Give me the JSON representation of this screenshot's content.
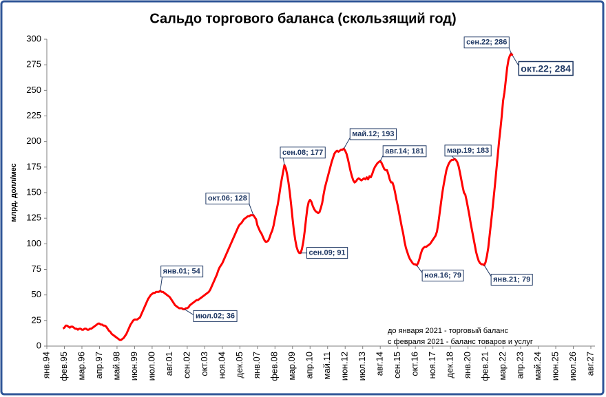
{
  "chart_data": {
    "type": "line",
    "title": "Сальдо торгового баланса (скользящий год)",
    "y_label": "млрд. долл/мес",
    "notes": [
      "до января 2021 - торговый баланс",
      "с февраля 2021 - баланс товаров и услуг"
    ],
    "color": "#ff0000",
    "grid": false,
    "ylim": [
      0,
      300
    ],
    "yticks": [
      0,
      25,
      50,
      75,
      100,
      125,
      150,
      175,
      200,
      225,
      250,
      275,
      300
    ],
    "categories": [
      "янв.94",
      null,
      null,
      null,
      null,
      null,
      null,
      null,
      null,
      null,
      null,
      null,
      null,
      "фев.95",
      null,
      null,
      null,
      null,
      null,
      null,
      null,
      null,
      null,
      null,
      null,
      null,
      "мар.96",
      null,
      null,
      null,
      null,
      null,
      null,
      null,
      null,
      null,
      null,
      null,
      null,
      "апр.97",
      null,
      null,
      null,
      null,
      null,
      null,
      null,
      null,
      null,
      null,
      null,
      null,
      "май.98",
      null,
      null,
      null,
      null,
      null,
      null,
      null,
      null,
      null,
      null,
      null,
      null,
      "июн.99",
      null,
      null,
      null,
      null,
      null,
      null,
      null,
      null,
      null,
      null,
      null,
      null,
      "июл.00",
      null,
      null,
      null,
      null,
      null,
      null,
      null,
      null,
      null,
      null,
      null,
      null,
      "авг.01",
      null,
      null,
      null,
      null,
      null,
      null,
      null,
      null,
      null,
      null,
      null,
      null,
      "сен.02",
      null,
      null,
      null,
      null,
      null,
      null,
      null,
      null,
      null,
      null,
      null,
      null,
      "окт.03",
      null,
      null,
      null,
      null,
      null,
      null,
      null,
      null,
      null,
      null,
      null,
      null,
      "ноя.04",
      null,
      null,
      null,
      null,
      null,
      null,
      null,
      null,
      null,
      null,
      null,
      null,
      "дек.05",
      null,
      null,
      null,
      null,
      null,
      null,
      null,
      null,
      null,
      null,
      null,
      null,
      "янв.07",
      null,
      null,
      null,
      null,
      null,
      null,
      null,
      null,
      null,
      null,
      null,
      null,
      "фев.08",
      null,
      null,
      null,
      null,
      null,
      null,
      null,
      null,
      null,
      null,
      null,
      null,
      "мар.09",
      null,
      null,
      null,
      null,
      null,
      null,
      null,
      null,
      null,
      null,
      null,
      null,
      "апр.10",
      null,
      null,
      null,
      null,
      null,
      null,
      null,
      null,
      null,
      null,
      null,
      null,
      "май.11",
      null,
      null,
      null,
      null,
      null,
      null,
      null,
      null,
      null,
      null,
      null,
      null,
      "июн.12",
      null,
      null,
      null,
      null,
      null,
      null,
      null,
      null,
      null,
      null,
      null,
      null,
      "июл.13",
      null,
      null,
      null,
      null,
      null,
      null,
      null,
      null,
      null,
      null,
      null,
      null,
      "авг.14",
      null,
      null,
      null,
      null,
      null,
      null,
      null,
      null,
      null,
      null,
      null,
      null,
      "сен.15",
      null,
      null,
      null,
      null,
      null,
      null,
      null,
      null,
      null,
      null,
      null,
      null,
      "окт.16",
      null,
      null,
      null,
      null,
      null,
      null,
      null,
      null,
      null,
      null,
      null,
      null,
      "ноя.17",
      null,
      null,
      null,
      null,
      null,
      null,
      null,
      null,
      null,
      null,
      null,
      null,
      "дек.18",
      null,
      null,
      null,
      null,
      null,
      null,
      null,
      null,
      null,
      null,
      null,
      null,
      "янв.20",
      null,
      null,
      null,
      null,
      null,
      null,
      null,
      null,
      null,
      null,
      null,
      null,
      "фев.21",
      null,
      null,
      null,
      null,
      null,
      null,
      null,
      null,
      null,
      null,
      null,
      null,
      "мар.22",
      null,
      null,
      null,
      null,
      null,
      null,
      null,
      null,
      null,
      null,
      null,
      null,
      "апр.23",
      null,
      null,
      null,
      null,
      null,
      null,
      null,
      null,
      null,
      null,
      null,
      null,
      "май.24",
      null,
      null,
      null,
      null,
      null,
      null,
      null,
      null,
      null,
      null,
      null,
      null,
      "июн.25",
      null,
      null,
      null,
      null,
      null,
      null,
      null,
      null,
      null,
      null,
      null,
      null,
      "июл.26",
      null,
      null,
      null,
      null,
      null,
      null,
      null,
      null,
      null,
      null,
      null,
      null,
      "авг.27"
    ],
    "values": [
      null,
      null,
      null,
      null,
      null,
      null,
      null,
      null,
      null,
      null,
      null,
      null,
      17,
      18,
      20,
      20,
      19,
      18,
      19,
      19,
      18,
      17,
      17,
      16,
      17,
      17,
      16,
      16,
      17,
      17,
      16,
      16,
      17,
      17,
      18,
      19,
      20,
      21,
      22,
      22,
      21,
      21,
      20,
      20,
      19,
      17,
      15,
      14,
      12,
      11,
      10,
      9,
      8,
      7,
      6,
      6,
      7,
      8,
      10,
      12,
      15,
      18,
      21,
      23,
      25,
      26,
      26,
      26,
      27,
      28,
      31,
      34,
      37,
      40,
      43,
      46,
      48,
      50,
      51,
      52,
      52,
      53,
      53,
      53,
      54,
      53,
      53,
      52,
      51,
      50,
      49,
      48,
      46,
      44,
      42,
      40,
      39,
      38,
      37,
      37,
      37,
      36,
      36,
      37,
      37,
      38,
      40,
      41,
      42,
      43,
      44,
      45,
      45,
      46,
      47,
      48,
      49,
      50,
      51,
      52,
      53,
      55,
      58,
      61,
      64,
      67,
      70,
      74,
      77,
      79,
      81,
      84,
      87,
      90,
      93,
      96,
      99,
      102,
      105,
      108,
      111,
      114,
      117,
      119,
      120,
      122,
      124,
      125,
      126,
      127,
      127,
      128,
      128,
      128,
      126,
      124,
      118,
      115,
      112,
      110,
      107,
      104,
      102,
      102,
      103,
      106,
      110,
      113,
      118,
      125,
      132,
      138,
      146,
      155,
      163,
      170,
      177,
      174,
      168,
      160,
      150,
      138,
      125,
      113,
      104,
      97,
      93,
      91,
      91,
      95,
      102,
      112,
      124,
      135,
      141,
      143,
      141,
      137,
      134,
      132,
      131,
      130,
      131,
      135,
      140,
      148,
      155,
      160,
      165,
      170,
      175,
      180,
      184,
      188,
      190,
      191,
      190,
      191,
      192,
      192,
      193,
      191,
      188,
      183,
      177,
      171,
      166,
      162,
      160,
      161,
      163,
      164,
      163,
      162,
      163,
      164,
      163,
      165,
      163,
      166,
      165,
      168,
      172,
      175,
      177,
      179,
      180,
      181,
      179,
      176,
      173,
      172,
      172,
      168,
      163,
      160,
      160,
      156,
      150,
      143,
      137,
      130,
      123,
      116,
      110,
      102,
      96,
      92,
      88,
      85,
      83,
      81,
      80,
      80,
      79,
      81,
      85,
      90,
      94,
      96,
      97,
      97,
      98,
      99,
      100,
      102,
      104,
      106,
      108,
      112,
      120,
      130,
      140,
      150,
      158,
      165,
      172,
      176,
      179,
      181,
      182,
      182,
      183,
      182,
      180,
      176,
      170,
      163,
      156,
      150,
      148,
      142,
      135,
      128,
      120,
      113,
      106,
      99,
      92,
      87,
      83,
      81,
      80,
      80,
      79,
      82,
      88,
      96,
      108,
      120,
      132,
      145,
      158,
      172,
      186,
      200,
      212,
      225,
      240,
      248,
      260,
      272,
      280,
      284,
      286,
      284,
      null,
      null,
      null,
      null,
      null,
      null,
      null,
      null,
      null,
      null,
      null,
      null,
      null,
      null,
      null,
      null,
      null,
      null,
      null,
      null,
      null,
      null,
      null,
      null,
      null,
      null,
      null,
      null,
      null,
      null,
      null,
      null,
      null,
      null,
      null,
      null,
      null,
      null,
      null,
      null,
      null,
      null,
      null,
      null,
      null,
      null,
      null,
      null,
      null,
      null,
      null,
      null,
      null,
      null,
      null,
      null,
      null,
      null
    ],
    "value_labels": [
      null,
      null,
      null,
      null,
      null,
      null,
      null,
      null,
      null,
      null,
      null,
      null,
      null,
      null,
      null,
      null,
      null,
      null,
      null,
      null,
      null,
      null,
      null,
      null,
      null,
      null,
      null,
      null,
      null,
      null,
      null,
      null,
      null,
      null,
      null,
      null,
      null,
      null,
      null,
      null,
      null,
      null,
      null,
      null,
      null,
      null,
      null,
      null,
      null,
      null,
      null,
      null,
      null,
      null,
      null,
      null,
      null,
      null,
      null,
      null,
      null,
      null,
      null,
      null,
      null,
      null,
      null,
      null,
      null,
      null,
      null,
      null,
      null,
      null,
      null,
      null,
      null,
      null,
      null,
      null,
      null,
      null,
      null,
      null,
      "янв.01; 54",
      null,
      null,
      null,
      null,
      null,
      null,
      null,
      null,
      null,
      null,
      null,
      null,
      null,
      null,
      null,
      null,
      null,
      "июл.02; 36",
      null,
      null,
      null,
      null,
      null,
      null,
      null,
      null,
      null,
      null,
      null,
      null,
      null,
      null,
      null,
      null,
      null,
      null,
      null,
      null,
      null,
      null,
      null,
      null,
      null,
      null,
      null,
      null,
      null,
      null,
      null,
      null,
      null,
      null,
      null,
      null,
      null,
      null,
      null,
      null,
      null,
      null,
      null,
      null,
      null,
      null,
      null,
      null,
      null,
      null,
      "окт.06; 128",
      null,
      null,
      null,
      null,
      null,
      null,
      null,
      null,
      null,
      null,
      null,
      null,
      null,
      null,
      null,
      null,
      null,
      null,
      null,
      null,
      null,
      null,
      "сен.08; 177",
      null,
      null,
      null,
      null,
      null,
      null,
      null,
      null,
      null,
      null,
      null,
      "сен.09; 91",
      null,
      null,
      null,
      null,
      null,
      null,
      null,
      null,
      null,
      null,
      null,
      null,
      null,
      null,
      null,
      null,
      null,
      null,
      null,
      null,
      null,
      null,
      null,
      null,
      null,
      null,
      null,
      null,
      null,
      null,
      null,
      "май.12; 193",
      null,
      null,
      null,
      null,
      null,
      null,
      null,
      null,
      null,
      null,
      null,
      null,
      null,
      null,
      null,
      null,
      null,
      null,
      null,
      null,
      null,
      null,
      null,
      null,
      null,
      null,
      "авг.14; 181",
      null,
      null,
      null,
      null,
      null,
      null,
      null,
      null,
      null,
      null,
      null,
      null,
      null,
      null,
      null,
      null,
      null,
      null,
      null,
      null,
      null,
      null,
      null,
      null,
      null,
      null,
      "ноя.16; 79",
      null,
      null,
      null,
      null,
      null,
      null,
      null,
      null,
      null,
      null,
      null,
      null,
      null,
      null,
      null,
      null,
      null,
      null,
      null,
      null,
      null,
      null,
      null,
      null,
      null,
      null,
      null,
      "мар.19; 183",
      null,
      null,
      null,
      null,
      null,
      null,
      null,
      null,
      null,
      null,
      null,
      null,
      null,
      null,
      null,
      null,
      null,
      null,
      null,
      null,
      null,
      "янв.21; 79",
      null,
      null,
      null,
      null,
      null,
      null,
      null,
      null,
      null,
      null,
      null,
      null,
      null,
      null,
      null,
      null,
      null,
      null,
      null,
      "сен.22; 286",
      "окт.22; 284",
      null,
      null,
      null,
      null,
      null,
      null,
      null,
      null,
      null,
      null,
      null,
      null,
      null,
      null,
      null,
      null,
      null,
      null,
      null,
      null,
      null,
      null,
      null,
      null,
      null,
      null,
      null,
      null,
      null,
      null,
      null,
      null,
      null,
      null,
      null,
      null,
      null,
      null,
      null,
      null,
      null,
      null,
      null,
      null,
      null,
      null,
      null,
      null,
      null,
      null,
      null,
      null,
      null,
      null,
      null,
      null,
      null,
      null
    ]
  }
}
